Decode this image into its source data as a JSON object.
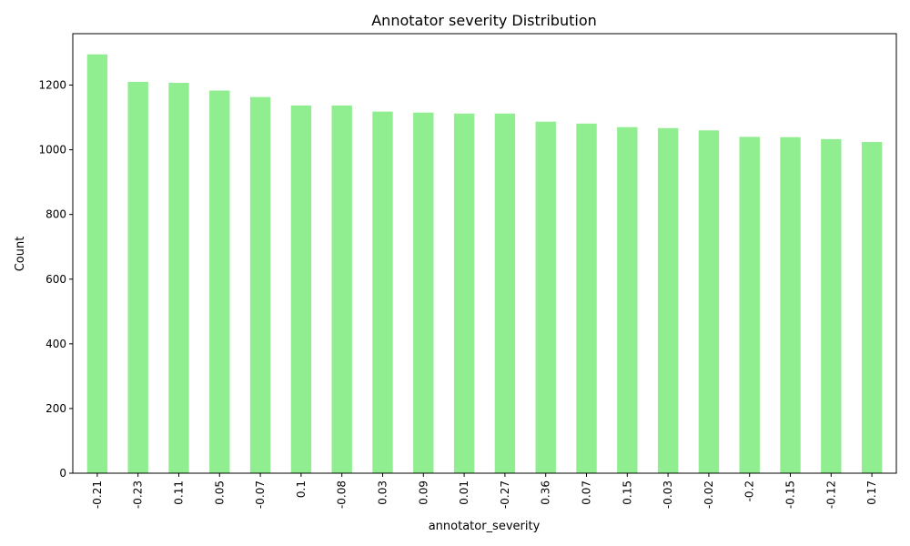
{
  "chart_data": {
    "type": "bar",
    "title": "Annotator severity Distribution",
    "xlabel": "annotator_severity",
    "ylabel": "Count",
    "categories": [
      "-0.21",
      "-0.23",
      "0.11",
      "0.05",
      "-0.07",
      "0.1",
      "-0.08",
      "0.03",
      "0.09",
      "0.01",
      "-0.27",
      "0.36",
      "0.07",
      "0.15",
      "-0.03",
      "-0.02",
      "-0.2",
      "-0.15",
      "-0.12",
      "0.17"
    ],
    "values": [
      1295,
      1210,
      1207,
      1183,
      1163,
      1137,
      1137,
      1118,
      1115,
      1112,
      1112,
      1087,
      1081,
      1070,
      1067,
      1060,
      1040,
      1039,
      1033,
      1024
    ],
    "ylim": [
      0,
      1359
    ],
    "yticks": [
      0,
      200,
      400,
      600,
      800,
      1000,
      1200
    ],
    "bar_color": "#90ee90",
    "grid": false,
    "legend": "none"
  }
}
